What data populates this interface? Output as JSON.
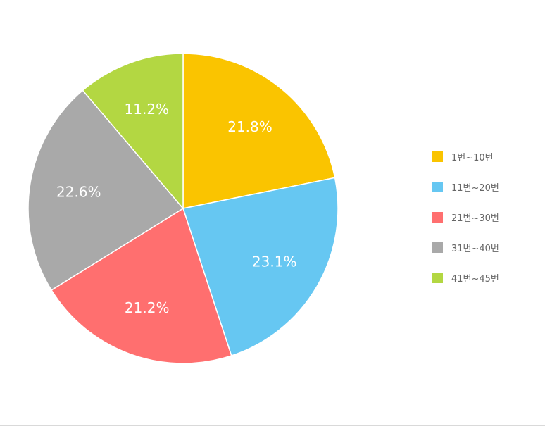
{
  "chart_data": {
    "type": "pie",
    "categories": [
      "1번~10번",
      "11번~20번",
      "21번~30번",
      "31번~40번",
      "41번~45번"
    ],
    "values": [
      21.8,
      23.1,
      21.2,
      22.6,
      11.2
    ],
    "labels": [
      "21.8%",
      "23.1%",
      "21.2%",
      "22.6%",
      "11.2%"
    ],
    "colors": [
      "#fac400",
      "#66c7f2",
      "#ff6f6f",
      "#a9a9a9",
      "#b3d742"
    ],
    "start_angle": "12 o'clock",
    "direction": "clockwise",
    "legend_position": "right"
  }
}
